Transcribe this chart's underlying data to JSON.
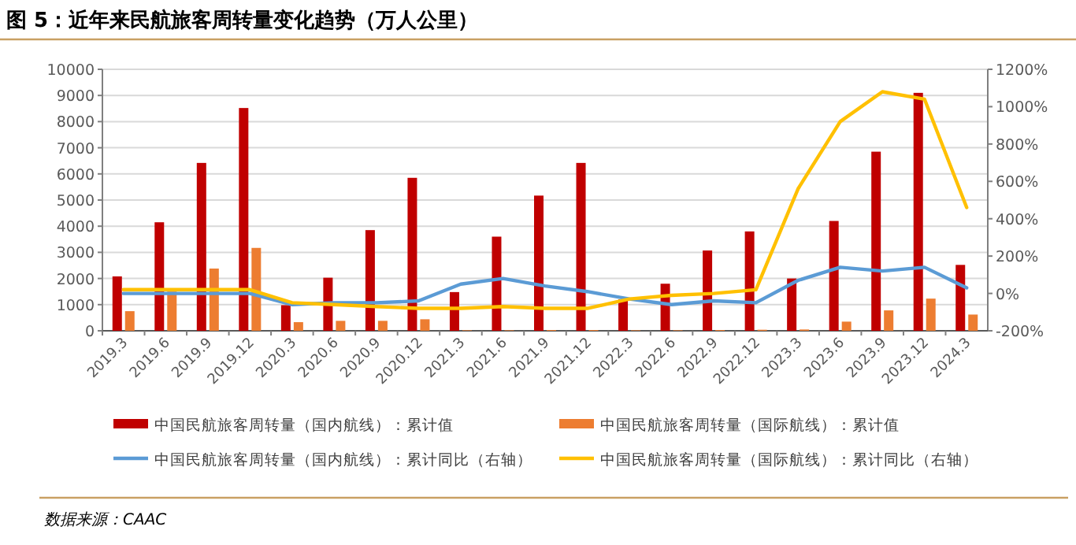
{
  "chart_data": {
    "type": "bar",
    "title": "图 5：近年来民航旅客周转量变化趋势（万人公里）",
    "categories": [
      "2019.3",
      "2019.6",
      "2019.9",
      "2019.12",
      "2020.3",
      "2020.6",
      "2020.9",
      "2020.12",
      "2021.3",
      "2021.6",
      "2021.9",
      "2021.12",
      "2022.3",
      "2022.6",
      "2022.9",
      "2022.12",
      "2023.3",
      "2023.6",
      "2023.9",
      "2023.12",
      "2024.3"
    ],
    "series": [
      {
        "name": "中国民航旅客周转量（国内航线）：累计值",
        "color": "#c00000",
        "values": [
          2080,
          4150,
          6420,
          8520,
          980,
          2030,
          3850,
          5850,
          1480,
          3600,
          5170,
          6420,
          1200,
          1800,
          3070,
          3800,
          2000,
          4200,
          6850,
          9100,
          2520
        ]
      },
      {
        "name": "中国民航旅客周转量（国际航线）：累计值",
        "color": "#ed7d31",
        "values": [
          750,
          1500,
          2380,
          3170,
          330,
          380,
          380,
          440,
          20,
          20,
          30,
          30,
          20,
          20,
          30,
          40,
          50,
          350,
          780,
          1230,
          620
        ]
      },
      {
        "name": "中国民航旅客周转量（国内航线）：累计同比（右轴）",
        "type": "line",
        "axis": "y2",
        "color": "#5b9bd5",
        "values": [
          0,
          0,
          0,
          0,
          -60,
          -50,
          -50,
          -40,
          50,
          80,
          40,
          10,
          -30,
          -60,
          -40,
          -50,
          70,
          140,
          120,
          140,
          30
        ]
      },
      {
        "name": "中国民航旅客周转量（国际航线）：累计同比（右轴）",
        "type": "line",
        "axis": "y2",
        "color": "#ffc000",
        "values": [
          20,
          20,
          20,
          20,
          -50,
          -60,
          -70,
          -80,
          -80,
          -70,
          -80,
          -80,
          -30,
          -10,
          0,
          20,
          560,
          920,
          1080,
          1040,
          460
        ]
      }
    ],
    "ylim": [
      0,
      10000
    ],
    "yticks": [
      0,
      1000,
      2000,
      3000,
      4000,
      5000,
      6000,
      7000,
      8000,
      9000,
      10000
    ],
    "y2lim": [
      -200,
      1200
    ],
    "y2ticks": [
      {
        "value": -200,
        "label": "-200%"
      },
      {
        "value": 0,
        "label": "0%"
      },
      {
        "value": 200,
        "label": "200%"
      },
      {
        "value": 400,
        "label": "400%"
      },
      {
        "value": 600,
        "label": "600%"
      },
      {
        "value": 800,
        "label": "800%"
      },
      {
        "value": 1000,
        "label": "1000%"
      },
      {
        "value": 1200,
        "label": "1200%"
      }
    ],
    "grid": "y",
    "legend": "bottom",
    "annotations": [
      "数据来源：CAAC"
    ]
  }
}
